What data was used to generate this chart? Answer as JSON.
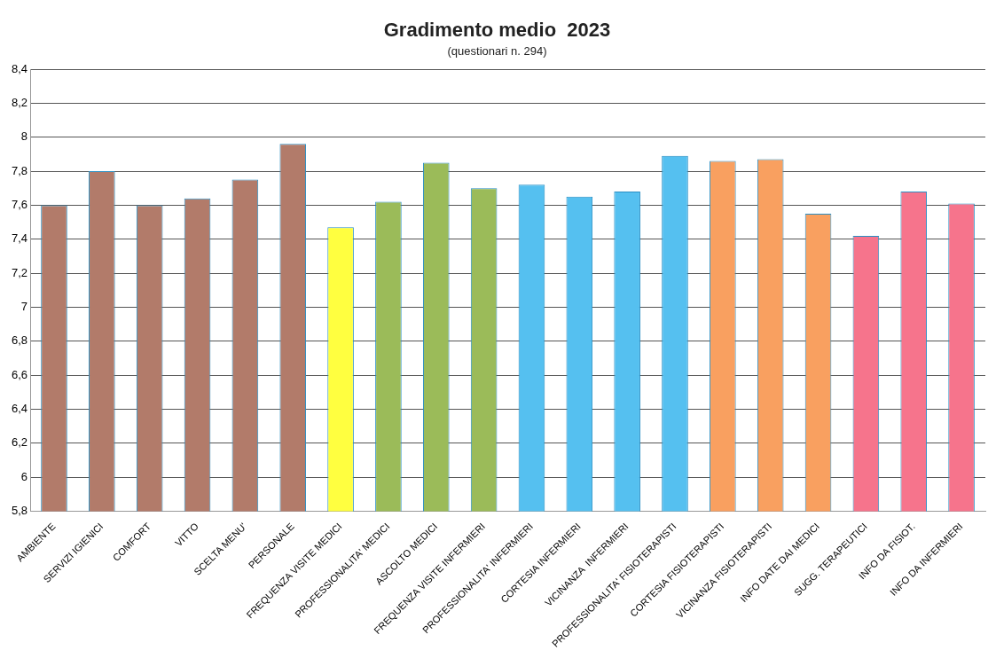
{
  "chart_data": {
    "type": "bar",
    "title": "Gradimento medio  2023",
    "subtitle": "(questionari n. 294)",
    "categories": [
      "AMBIENTE",
      "SERVIZI IGIENICI",
      "COMFORT",
      "VITTO",
      "SCELTA MENU'",
      "PERSONALE",
      "FREQUENZA VISITE MEDICI",
      "PROFESSIONALITA' MEDICI",
      "ASCOLTO MEDICI",
      "FREQUENZA VISITE INFERMIERI",
      "PROFESSIONALITA' INFERMIERI",
      "CORTESIA INFERMIERI",
      "VICINANZA  INFERMIERI",
      "PROFESSIONALITA' FISIOTERAPISTI",
      "CORTESIA FISIOTERAPISTI",
      "VICINANZA FISIOTERAPISTI",
      "INFO DATE DAI MEDICI",
      "SUGG. TERAPEUTICI",
      "INFO DA FISIOT.",
      "INFO DA INFERMIERI"
    ],
    "values": [
      7.6,
      7.8,
      7.6,
      7.64,
      7.75,
      7.96,
      7.47,
      7.62,
      7.85,
      7.7,
      7.72,
      7.65,
      7.68,
      7.89,
      7.86,
      7.87,
      7.55,
      7.42,
      7.68,
      7.61
    ],
    "colors": [
      "#b27b6a",
      "#b27b6a",
      "#b27b6a",
      "#b27b6a",
      "#b27b6a",
      "#b27b6a",
      "#ffff40",
      "#9bbb59",
      "#9bbb59",
      "#9bbb59",
      "#55c0f0",
      "#55c0f0",
      "#55c0f0",
      "#55c0f0",
      "#f9a060",
      "#f9a060",
      "#f9a060",
      "#f6748c",
      "#f6748c",
      "#f6748c"
    ],
    "ylim": [
      5.8,
      8.4
    ],
    "yticks": [
      {
        "value": 5.8,
        "label": "5,8"
      },
      6,
      {
        "value": 6.2,
        "label": "6,2"
      },
      {
        "value": 6.4,
        "label": "6,4"
      },
      {
        "value": 6.6,
        "label": "6,6"
      },
      {
        "value": 6.8,
        "label": "6,8"
      },
      7,
      {
        "value": 7.2,
        "label": "7,2"
      },
      {
        "value": 7.4,
        "label": "7,4"
      },
      {
        "value": 7.6,
        "label": "7,6"
      },
      {
        "value": 7.8,
        "label": "7,8"
      },
      8,
      {
        "value": 8.2,
        "label": "8,2"
      },
      {
        "value": 8.4,
        "label": "8,4"
      }
    ],
    "grid": "y",
    "legend": false
  }
}
